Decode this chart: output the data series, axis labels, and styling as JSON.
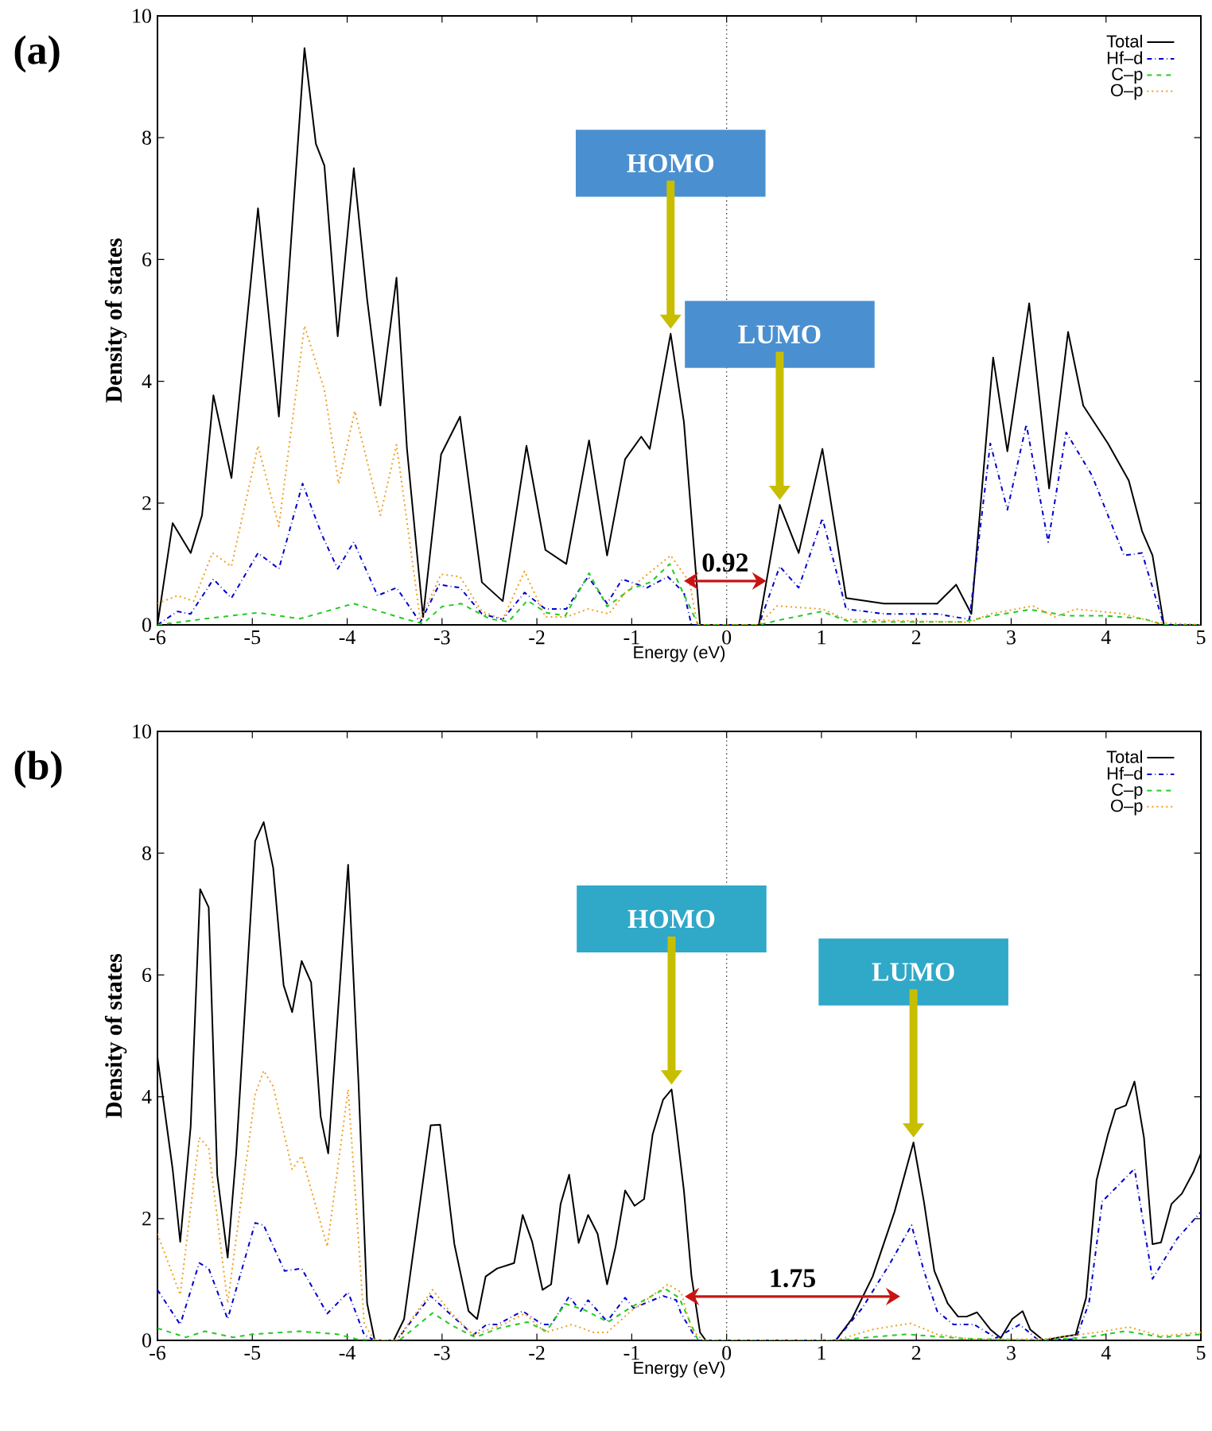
{
  "chart_data": [
    {
      "type": "line",
      "title": "(a)",
      "xlabel": "Energy (eV)",
      "ylabel": "Density of states",
      "xlim": [
        -6,
        5
      ],
      "ylim": [
        0,
        10
      ],
      "xticks": [
        -6,
        -5,
        -4,
        -3,
        -2,
        -1,
        0,
        1,
        2,
        3,
        4,
        5
      ],
      "yticks": [
        0,
        2,
        4,
        6,
        8,
        10
      ],
      "legend": "top right",
      "grid": false,
      "marker": "none",
      "ref_lines": [
        {
          "axis": "x",
          "value": 0,
          "line_style": "dotted",
          "color": "#333333"
        }
      ],
      "annotations": [
        "HOMO",
        "LUMO",
        "0.92"
      ],
      "series": [
        {
          "name": "Total",
          "color": "#000000",
          "line_style": "solid",
          "x": [
            -6,
            -5.84,
            -5.65,
            -5.53,
            -5.41,
            -5.22,
            -4.94,
            -4.72,
            -4.45,
            -4.33,
            -4.24,
            -4.1,
            -3.93,
            -3.79,
            -3.65,
            -3.48,
            -3.37,
            -3.2,
            -3.01,
            -2.81,
            -2.58,
            -2.36,
            -2.11,
            -1.91,
            -1.69,
            -1.45,
            -1.26,
            -1.07,
            -0.9,
            -0.81,
            -0.59,
            -0.45,
            -0.28,
            0.34,
            0.56,
            0.76,
            1.01,
            1.26,
            1.66,
            2.22,
            2.42,
            2.58,
            2.81,
            2.96,
            3.19,
            3.4,
            3.6,
            3.76,
            4.02,
            4.24,
            4.38,
            4.49,
            4.61,
            5
          ],
          "values": [
            0,
            1.67,
            1.18,
            1.8,
            3.77,
            2.41,
            6.84,
            3.42,
            9.47,
            7.9,
            7.54,
            4.74,
            7.5,
            5.35,
            3.6,
            5.7,
            2.9,
            0.13,
            2.8,
            3.42,
            0.7,
            0.39,
            2.94,
            1.23,
            1.0,
            3.03,
            1.14,
            2.72,
            3.09,
            2.89,
            4.78,
            3.33,
            0,
            0,
            1.97,
            1.18,
            2.89,
            0.44,
            0.35,
            0.35,
            0.66,
            0.18,
            4.39,
            2.85,
            5.28,
            2.24,
            4.81,
            3.6,
            2.98,
            2.37,
            1.54,
            1.14,
            0,
            0
          ]
        },
        {
          "name": "Hf–d",
          "color": "#0000cc",
          "line_style": "dashdot",
          "x": [
            -6,
            -5.79,
            -5.65,
            -5.41,
            -5.22,
            -4.94,
            -4.72,
            -4.47,
            -4.27,
            -4.1,
            -3.93,
            -3.68,
            -3.48,
            -3.23,
            -3.03,
            -2.81,
            -2.58,
            -2.36,
            -2.13,
            -1.91,
            -1.69,
            -1.46,
            -1.26,
            -1.1,
            -0.84,
            -0.62,
            -0.45,
            -0.37,
            0.34,
            0.56,
            0.76,
            1.01,
            1.26,
            1.66,
            2.22,
            2.56,
            2.78,
            2.96,
            3.16,
            3.39,
            3.58,
            3.85,
            4.19,
            4.38,
            4.61,
            5
          ],
          "values": [
            0,
            0.22,
            0.18,
            0.75,
            0.44,
            1.18,
            0.92,
            2.32,
            1.49,
            0.92,
            1.36,
            0.48,
            0.61,
            0.04,
            0.66,
            0.61,
            0.18,
            0.09,
            0.53,
            0.26,
            0.26,
            0.79,
            0.35,
            0.75,
            0.61,
            0.79,
            0.53,
            0,
            0,
            0.96,
            0.61,
            1.75,
            0.26,
            0.18,
            0.18,
            0.09,
            2.98,
            1.89,
            3.29,
            1.36,
            3.16,
            2.46,
            1.14,
            1.18,
            0,
            0
          ]
        },
        {
          "name": "C–p",
          "color": "#22cc22",
          "line_style": "dashed",
          "x": [
            -6,
            -5.5,
            -4.94,
            -4.5,
            -3.93,
            -3.4,
            -3.2,
            -3.0,
            -2.8,
            -2.5,
            -2.3,
            -2.1,
            -1.9,
            -1.7,
            -1.45,
            -1.26,
            -1.0,
            -0.8,
            -0.6,
            -0.45,
            -0.3,
            0.34,
            0.56,
            1.0,
            1.3,
            2.5,
            2.8,
            3.2,
            3.6,
            4.0,
            4.4,
            4.6,
            5
          ],
          "values": [
            0,
            0.1,
            0.2,
            0.1,
            0.35,
            0.1,
            0.02,
            0.3,
            0.35,
            0.1,
            0.05,
            0.4,
            0.2,
            0.15,
            0.85,
            0.3,
            0.6,
            0.7,
            1.0,
            0.5,
            0,
            0,
            0.08,
            0.22,
            0.05,
            0.05,
            0.15,
            0.25,
            0.15,
            0.15,
            0.1,
            0,
            0
          ]
        },
        {
          "name": "O–p",
          "color": "#f0a020",
          "line_style": "dotted",
          "x": [
            -6,
            -5.79,
            -5.62,
            -5.42,
            -5.22,
            -4.94,
            -4.72,
            -4.45,
            -4.24,
            -4.09,
            -3.92,
            -3.65,
            -3.48,
            -3.23,
            -3.01,
            -2.81,
            -2.58,
            -2.36,
            -2.13,
            -1.91,
            -1.69,
            -1.46,
            -1.24,
            -1.07,
            -0.59,
            -0.39,
            -0.31,
            0.34,
            0.53,
            1.01,
            1.26,
            2.56,
            2.78,
            3.23,
            3.46,
            3.68,
            4.19,
            4.52,
            5
          ],
          "values": [
            0.35,
            0.48,
            0.39,
            1.18,
            0.96,
            2.94,
            1.62,
            4.91,
            3.86,
            2.32,
            3.51,
            1.8,
            2.96,
            0.09,
            0.83,
            0.79,
            0.22,
            0.09,
            0.88,
            0.13,
            0.13,
            0.26,
            0.18,
            0.53,
            1.14,
            0.7,
            0,
            0,
            0.31,
            0.26,
            0.09,
            0.04,
            0.18,
            0.31,
            0.13,
            0.26,
            0.18,
            0.04,
            0
          ]
        }
      ]
    },
    {
      "type": "line",
      "title": "(b)",
      "xlabel": "Energy (eV)",
      "ylabel": "Density of states",
      "xlim": [
        -6,
        5
      ],
      "ylim": [
        0,
        10
      ],
      "xticks": [
        -6,
        -5,
        -4,
        -3,
        -2,
        -1,
        0,
        1,
        2,
        3,
        4,
        5
      ],
      "yticks": [
        0,
        2,
        4,
        6,
        8,
        10
      ],
      "legend": "top right",
      "grid": false,
      "marker": "none",
      "ref_lines": [
        {
          "axis": "x",
          "value": 0,
          "line_style": "dotted",
          "color": "#333333"
        }
      ],
      "annotations": [
        "HOMO",
        "LUMO",
        "1.75"
      ],
      "series": [
        {
          "name": "Total",
          "color": "#000000",
          "line_style": "solid",
          "x": [
            -6,
            -5.84,
            -5.76,
            -5.65,
            -5.55,
            -5.46,
            -5.37,
            -5.26,
            -5.17,
            -4.97,
            -4.88,
            -4.78,
            -4.67,
            -4.58,
            -4.48,
            -4.38,
            -4.28,
            -4.2,
            -3.99,
            -3.88,
            -3.79,
            -3.71,
            -3.51,
            -3.4,
            -3.12,
            -3.02,
            -2.87,
            -2.72,
            -2.63,
            -2.54,
            -2.42,
            -2.24,
            -2.15,
            -2.05,
            -1.94,
            -1.85,
            -1.75,
            -1.66,
            -1.56,
            -1.46,
            -1.36,
            -1.26,
            -1.17,
            -1.07,
            -0.97,
            -0.87,
            -0.78,
            -0.67,
            -0.58,
            -0.53,
            -0.45,
            -0.37,
            -0.28,
            -0.22,
            1.15,
            1.32,
            1.54,
            1.77,
            1.97,
            2.08,
            2.19,
            2.33,
            2.44,
            2.53,
            2.64,
            2.78,
            2.89,
            3.01,
            3.12,
            3.2,
            3.34,
            3.54,
            3.68,
            3.79,
            3.9,
            4.02,
            4.1,
            4.21,
            4.3,
            4.4,
            4.49,
            4.58,
            4.69,
            4.8,
            4.92,
            5
          ],
          "values": [
            4.65,
            2.81,
            1.62,
            3.51,
            7.41,
            7.11,
            2.72,
            1.36,
            3.07,
            8.2,
            8.51,
            7.76,
            5.83,
            5.39,
            6.23,
            5.88,
            3.68,
            3.07,
            7.81,
            4.21,
            0.61,
            0,
            0,
            0.35,
            3.53,
            3.54,
            1.58,
            0.48,
            0.35,
            1.05,
            1.18,
            1.27,
            2.06,
            1.62,
            0.83,
            0.92,
            2.24,
            2.72,
            1.6,
            2.06,
            1.75,
            0.92,
            1.54,
            2.46,
            2.21,
            2.32,
            3.38,
            3.95,
            4.12,
            3.5,
            2.46,
            1.05,
            0.13,
            0,
            0,
            0.35,
            1.05,
            2.11,
            3.25,
            2.28,
            1.14,
            0.61,
            0.39,
            0.39,
            0.46,
            0.18,
            0.04,
            0.35,
            0.48,
            0.18,
            0,
            0.06,
            0.09,
            0.7,
            2.63,
            3.38,
            3.79,
            3.86,
            4.25,
            3.33,
            1.58,
            1.61,
            2.24,
            2.41,
            2.76,
            3.07
          ]
        },
        {
          "name": "Hf–d",
          "color": "#0000cc",
          "line_style": "dashdot",
          "x": [
            -6,
            -5.76,
            -5.56,
            -5.46,
            -5.26,
            -4.97,
            -4.88,
            -4.66,
            -4.48,
            -4.21,
            -3.99,
            -3.82,
            -3.71,
            -3.48,
            -3.12,
            -2.92,
            -2.67,
            -2.53,
            -2.42,
            -2.15,
            -1.94,
            -1.85,
            -1.66,
            -1.54,
            -1.46,
            -1.26,
            -1.07,
            -0.98,
            -0.67,
            -0.53,
            -0.48,
            -0.31,
            1.15,
            1.43,
            1.71,
            1.95,
            2.08,
            2.22,
            2.39,
            2.61,
            2.84,
            3.09,
            3.29,
            3.68,
            3.82,
            3.96,
            4.1,
            4.3,
            4.49,
            4.75,
            5
          ],
          "values": [
            0.83,
            0.26,
            1.27,
            1.18,
            0.35,
            1.93,
            1.89,
            1.14,
            1.18,
            0.44,
            0.79,
            0.09,
            0,
            0,
            0.73,
            0.44,
            0.09,
            0.26,
            0.26,
            0.48,
            0.26,
            0.26,
            0.72,
            0.48,
            0.66,
            0.31,
            0.7,
            0.53,
            0.73,
            0.66,
            0.44,
            0,
            0,
            0.53,
            1.23,
            1.89,
            1.14,
            0.48,
            0.26,
            0.26,
            0.04,
            0.26,
            0,
            0.02,
            0.61,
            2.28,
            2.5,
            2.82,
            1.01,
            1.67,
            2.11
          ]
        },
        {
          "name": "C–p",
          "color": "#22cc22",
          "line_style": "dashed",
          "x": [
            -6,
            -5.7,
            -5.5,
            -5.2,
            -5,
            -4.5,
            -4.1,
            -3.9,
            -3.7,
            -3.45,
            -3.1,
            -2.9,
            -2.65,
            -2.4,
            -2.1,
            -1.9,
            -1.7,
            -1.5,
            -1.25,
            -1.0,
            -0.65,
            -0.5,
            -0.3,
            1.15,
            1.5,
            1.9,
            2.5,
            3.3,
            3.8,
            4.2,
            4.6,
            5
          ],
          "values": [
            0.2,
            0.05,
            0.15,
            0.05,
            0.1,
            0.15,
            0.1,
            0.02,
            0,
            0,
            0.45,
            0.25,
            0.05,
            0.2,
            0.3,
            0.15,
            0.6,
            0.5,
            0.3,
            0.55,
            0.85,
            0.7,
            0,
            0,
            0.05,
            0.1,
            0.03,
            0,
            0.05,
            0.15,
            0.05,
            0.1
          ]
        },
        {
          "name": "O–p",
          "color": "#f0a020",
          "line_style": "dotted",
          "x": [
            -6,
            -5.76,
            -5.56,
            -5.46,
            -5.26,
            -4.97,
            -4.88,
            -4.78,
            -4.58,
            -4.48,
            -4.21,
            -3.99,
            -3.82,
            -3.71,
            -3.48,
            -3.1,
            -2.92,
            -2.67,
            -2.36,
            -2.13,
            -1.91,
            -1.63,
            -1.4,
            -1.26,
            -1.01,
            -0.62,
            -0.48,
            -0.37,
            -0.25,
            1.15,
            1.54,
            1.94,
            2.22,
            2.56,
            3.34,
            3.9,
            4.24,
            4.58,
            5
          ],
          "values": [
            1.75,
            0.75,
            3.33,
            3.16,
            0.61,
            4.04,
            4.43,
            4.17,
            2.81,
            3.03,
            1.54,
            4.12,
            0.26,
            0,
            0,
            0.83,
            0.48,
            0.09,
            0.26,
            0.44,
            0.13,
            0.26,
            0.13,
            0.13,
            0.48,
            0.92,
            0.79,
            0.18,
            0,
            0,
            0.18,
            0.28,
            0.1,
            0.02,
            0.02,
            0.13,
            0.22,
            0.07,
            0.13
          ]
        }
      ]
    }
  ]
}
